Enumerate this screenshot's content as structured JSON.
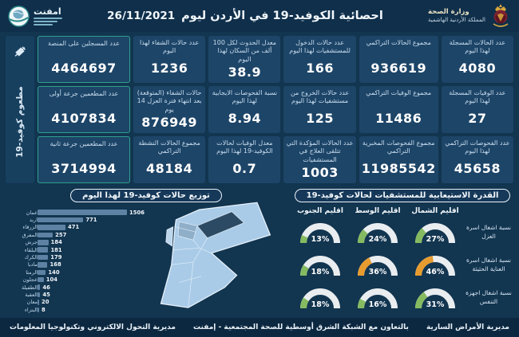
{
  "header": {
    "title": "احصائية الكوفيد-19 في الأردن ليوم",
    "date": "26/11/2021",
    "emphnet_name": "امفنت",
    "moh_line1": "وزارة الصحة",
    "moh_line2": "المملكة الأردنية الهاشمية"
  },
  "sidebar": {
    "vaccine_label": "مطعوم كوفيد-19"
  },
  "stats": {
    "cards": [
      {
        "label": "عدد الحالات المسجلة لهذا اليوم",
        "value": "4080"
      },
      {
        "label": "مجموع الحالات التراكمي",
        "value": "936619"
      },
      {
        "label": "عدد حالات الدخول للمستشفيات لهذا اليوم",
        "value": "166"
      },
      {
        "label": "معدل الحدوث لكل 100 ألف من السكان لهذا اليوم",
        "value": "38.9"
      },
      {
        "label": "عدد حالات الشفاء لهذا اليوم",
        "value": "1236"
      },
      {
        "label": "عدد المسجلين على المنصة",
        "value": "4464697",
        "vax": true
      },
      {
        "label": "عدد الوفيات المسجلة لهذا اليوم",
        "value": "27"
      },
      {
        "label": "مجموع الوفيات التراكمي",
        "value": "11486"
      },
      {
        "label": "عدد حالات الخروج من مستشفيات لهذا اليوم",
        "value": "125"
      },
      {
        "label": "نسبة الفحوصات الايجابية لهذا اليوم",
        "value": "8.94"
      },
      {
        "label": "حالات الشفاء (المتوقعة) بعد انتهاء فترة العزل 14 يوم",
        "value": "876949"
      },
      {
        "label": "عدد المطعمين جرعة أولى",
        "value": "4107834",
        "vax": true
      },
      {
        "label": "عدد الفحوصات التراكمي لهذا اليوم",
        "value": "45658"
      },
      {
        "label": "مجموع الفحوصات المخبرية التراكمي",
        "value": "11985542"
      },
      {
        "label": "عدد الحالات المؤكدة التي تتلقى العلاج في المستشفيات",
        "value": "1003"
      },
      {
        "label": "معدل الوفيات لحالات الكوفيد-19 لهذا اليوم",
        "value": "0.7"
      },
      {
        "label": "مجموع الحالات النشطة التراكمي",
        "value": "48184"
      },
      {
        "label": "عدد المطعمين جرعة ثانية",
        "value": "3714994",
        "vax": true
      }
    ]
  },
  "chart_data": [
    {
      "type": "bar",
      "title": "توزيع حالات كوفيد-19 لهذا اليوم",
      "orientation": "horizontal",
      "categories": [
        "عمان",
        "اربد",
        "الزرقاء",
        "المفرق",
        "جرش",
        "البلقاء",
        "الكرك",
        "مادبا",
        "الرمثا",
        "عجلون",
        "الطفيلة",
        "العقبة",
        "معان",
        "البتراء"
      ],
      "values": [
        1506,
        771,
        471,
        257,
        184,
        181,
        179,
        168,
        140,
        104,
        46,
        45,
        20,
        8
      ],
      "xlim": [
        0,
        1506
      ],
      "bar_color": "#5E82A3",
      "grid": false,
      "value_labels": true
    },
    {
      "type": "heatmap",
      "subtype": "gauge-grid",
      "title": "القدرة الاستيعابية للمستشفيات لحالات كوفيد-19",
      "regions": [
        "اقليم الشمال",
        "اقليم الوسط",
        "اقليم الجنوب"
      ],
      "rows": [
        {
          "label": "نسبة اشغال اسرة العزل",
          "values": [
            27,
            24,
            13
          ],
          "colors": [
            "#86BA61",
            "#86BA61",
            "#86BA61"
          ]
        },
        {
          "label": "نسبة اشغال اسرة العناية الحثيثة",
          "values": [
            46,
            36,
            18
          ],
          "colors": [
            "#E89B2F",
            "#E89B2F",
            "#86BA61"
          ]
        },
        {
          "label": "نسبة اشغال اجهزة التنفس",
          "values": [
            31,
            16,
            18
          ],
          "colors": [
            "#86BA61",
            "#86BA61",
            "#86BA61"
          ]
        }
      ],
      "unit": "%",
      "gauge_track_color": "#E9EDF0"
    }
  ],
  "footer": {
    "right": "مديرية الأمراض السارية",
    "center": "بالتعاون مع الشبكة الشرق أوسطية للصحة المجتمعية - إمفنت",
    "left": "مديرية التحول الالكتروني وتكنولوجيا المعلومات"
  },
  "colors": {
    "background": "#123550",
    "header": "#0F2F4B",
    "card": "#1D4568",
    "vaccine_border": "#2FA08D",
    "gauge_green": "#86BA61",
    "gauge_orange": "#E89B2F",
    "bar": "#5E82A3",
    "map_fill": "#A9CBE8"
  }
}
